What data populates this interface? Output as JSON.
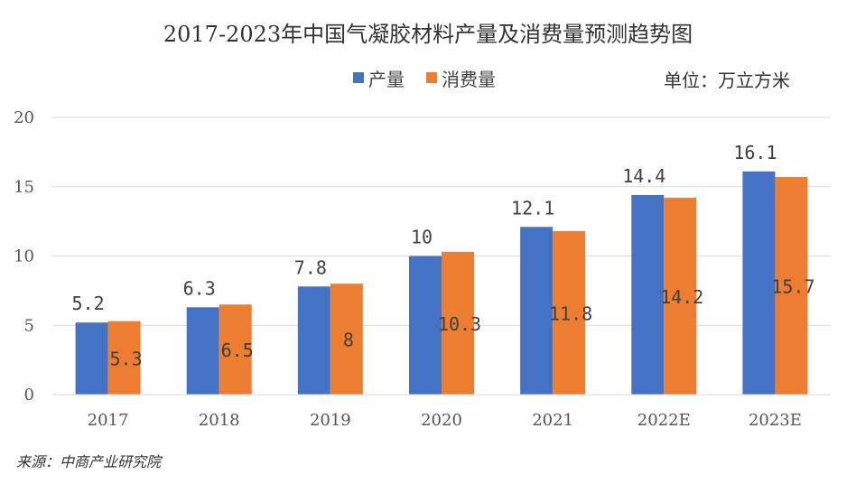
{
  "source": "来源：中商产业研究院",
  "unit": "单位：万立方米",
  "chart_data": {
    "type": "bar",
    "title": "2017-2023年中国气凝胶材料产量及消费量预测趋势图",
    "categories": [
      "2017",
      "2018",
      "2019",
      "2020",
      "2021",
      "2022E",
      "2023E"
    ],
    "series": [
      {
        "name": "产量",
        "color": "#4472C4",
        "values": [
          5.2,
          6.3,
          7.8,
          10,
          12.1,
          14.4,
          16.1
        ],
        "labels": [
          "5.2",
          "6.3",
          "7.8",
          "10",
          "12.1",
          "14.4",
          "16.1"
        ]
      },
      {
        "name": "消费量",
        "color": "#ED7D31",
        "values": [
          5.3,
          6.5,
          8,
          10.3,
          11.8,
          14.2,
          15.7
        ],
        "labels": [
          "5.3",
          "6.5",
          "8",
          "10.3",
          "11.8",
          "14.2",
          "15.7"
        ]
      }
    ],
    "yticks": [
      "0",
      "5",
      "10",
      "15",
      "20"
    ],
    "ylim": [
      0,
      20
    ],
    "grid": true,
    "legend": "top"
  }
}
